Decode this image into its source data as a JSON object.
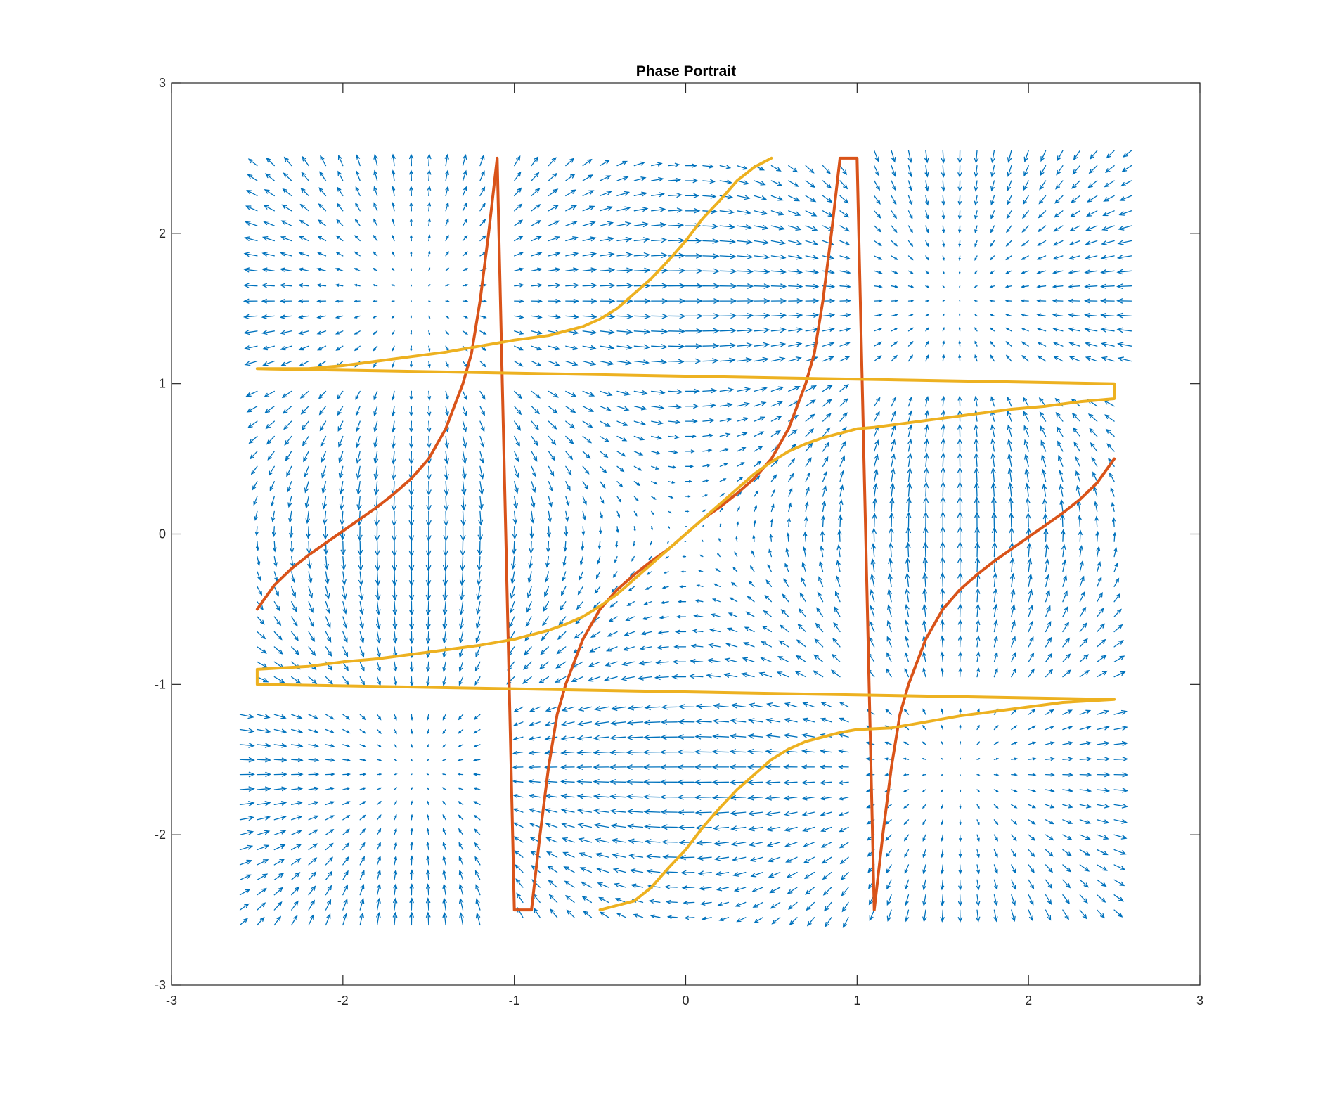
{
  "chart_data": {
    "type": "line",
    "title": "Phase Portrait",
    "xlabel": "",
    "ylabel": "",
    "xlim": [
      -3,
      3
    ],
    "ylim": [
      -3,
      3
    ],
    "xticks": [
      "-3",
      "-2",
      "-1",
      "0",
      "1",
      "2",
      "3"
    ],
    "yticks": [
      "-3",
      "-2",
      "-1",
      "0",
      "1",
      "2",
      "3"
    ],
    "grid": false,
    "legend": "none",
    "quiver": {
      "color": "#0072BD",
      "field": "dx = sin(y) * cos(x), dy = sin(x) * cos(y)",
      "regions": [
        {
          "x": [
            -2.5,
            -1.15
          ],
          "y": [
            1.15,
            2.5
          ]
        },
        {
          "x": [
            -1.0,
            0.95
          ],
          "y": [
            1.15,
            2.5
          ]
        },
        {
          "x": [
            1.1,
            2.6
          ],
          "y": [
            1.15,
            2.6
          ]
        },
        {
          "x": [
            -2.5,
            -1.15
          ],
          "y": [
            -0.95,
            1.0
          ]
        },
        {
          "x": [
            -1.0,
            0.95
          ],
          "y": [
            -0.95,
            1.0
          ]
        },
        {
          "x": [
            1.1,
            2.55
          ],
          "y": [
            -0.95,
            0.9
          ]
        },
        {
          "x": [
            -2.6,
            -1.15
          ],
          "y": [
            -2.6,
            -1.15
          ]
        },
        {
          "x": [
            -0.95,
            0.95
          ],
          "y": [
            -2.55,
            -1.15
          ]
        },
        {
          "x": [
            1.1,
            2.5
          ],
          "y": [
            -2.5,
            -1.15
          ]
        }
      ]
    },
    "series": [
      {
        "color": "#D95319",
        "x": [
          -2.5,
          -2.4,
          -2.3,
          -2.2,
          -2.1,
          -2.0,
          -1.9,
          -1.8,
          -1.7,
          -1.6,
          -1.5,
          -1.4,
          -1.35,
          -1.3,
          -1.25,
          -1.2,
          -1.15,
          -1.1,
          -1.0,
          -0.9,
          -0.85,
          -0.8,
          -0.75,
          -0.7,
          -0.65,
          -0.6,
          -0.5,
          -0.4,
          -0.3,
          -0.2,
          -0.1,
          0.0,
          0.1,
          0.2,
          0.3,
          0.4,
          0.5,
          0.6,
          0.65,
          0.7,
          0.75,
          0.8,
          0.85,
          0.9,
          1.0,
          1.1,
          1.15,
          1.2,
          1.25,
          1.3,
          1.35,
          1.4,
          1.5,
          1.6,
          1.7,
          1.8,
          1.9,
          2.0,
          2.1,
          2.2,
          2.3,
          2.4,
          2.5
        ],
        "y": [
          -0.5,
          -0.34,
          -0.23,
          -0.14,
          -0.06,
          0.02,
          0.1,
          0.18,
          0.27,
          0.37,
          0.5,
          0.7,
          0.85,
          1.0,
          1.2,
          1.55,
          2.0,
          2.5,
          -2.5,
          -2.5,
          -2.0,
          -1.55,
          -1.2,
          -1.0,
          -0.85,
          -0.7,
          -0.5,
          -0.37,
          -0.27,
          -0.18,
          -0.1,
          0.0,
          0.1,
          0.18,
          0.27,
          0.37,
          0.5,
          0.7,
          0.85,
          1.0,
          1.2,
          1.55,
          2.0,
          2.5,
          2.5,
          -2.5,
          -2.0,
          -1.55,
          -1.2,
          -1.0,
          -0.85,
          -0.7,
          -0.5,
          -0.37,
          -0.27,
          -0.18,
          -0.1,
          -0.02,
          0.06,
          0.14,
          0.23,
          0.34,
          0.5
        ]
      },
      {
        "color": "#EDB120",
        "x": [
          0.5,
          0.4,
          0.3,
          0.2,
          0.1,
          0.0,
          -0.1,
          -0.2,
          -0.3,
          -0.4,
          -0.5,
          -0.6,
          -0.7,
          -0.8,
          -1.0,
          -1.2,
          -1.4,
          -1.6,
          -1.8,
          -2.0,
          -2.2,
          -2.5,
          2.5,
          2.5,
          2.3,
          2.1,
          1.9,
          1.7,
          1.5,
          1.3,
          1.1,
          1.0,
          0.9,
          0.8,
          0.7,
          0.6,
          0.5,
          0.4,
          0.3,
          0.2,
          0.1,
          0.0,
          -0.1,
          -0.2,
          -0.3,
          -0.4,
          -0.5,
          -0.6,
          -0.7,
          -0.8,
          -0.9,
          -1.0,
          -1.2,
          -1.4,
          -1.6,
          -1.8,
          -2.0,
          -2.2,
          -2.5,
          -2.5,
          2.5,
          2.2,
          2.0,
          1.8,
          1.6,
          1.4,
          1.2,
          1.0,
          0.9,
          0.8,
          0.7,
          0.6,
          0.5,
          0.4,
          0.3,
          0.2,
          0.1,
          0.0,
          -0.1,
          -0.2,
          -0.3,
          -0.4,
          -0.5
        ],
        "y": [
          2.5,
          2.44,
          2.35,
          2.22,
          2.1,
          1.95,
          1.82,
          1.7,
          1.6,
          1.5,
          1.43,
          1.38,
          1.35,
          1.32,
          1.29,
          1.25,
          1.21,
          1.18,
          1.15,
          1.12,
          1.1,
          1.1,
          1.0,
          0.9,
          0.88,
          0.85,
          0.83,
          0.8,
          0.77,
          0.74,
          0.71,
          0.7,
          0.67,
          0.64,
          0.6,
          0.55,
          0.48,
          0.4,
          0.3,
          0.2,
          0.1,
          0.0,
          -0.1,
          -0.2,
          -0.3,
          -0.4,
          -0.48,
          -0.55,
          -0.6,
          -0.64,
          -0.67,
          -0.7,
          -0.74,
          -0.77,
          -0.8,
          -0.83,
          -0.85,
          -0.88,
          -0.9,
          -1.0,
          -1.1,
          -1.12,
          -1.15,
          -1.18,
          -1.21,
          -1.25,
          -1.29,
          -1.3,
          -1.32,
          -1.35,
          -1.38,
          -1.43,
          -1.5,
          -1.6,
          -1.7,
          -1.82,
          -1.95,
          -2.1,
          -2.22,
          -2.35,
          -2.44,
          -2.47,
          -2.5
        ]
      }
    ]
  }
}
